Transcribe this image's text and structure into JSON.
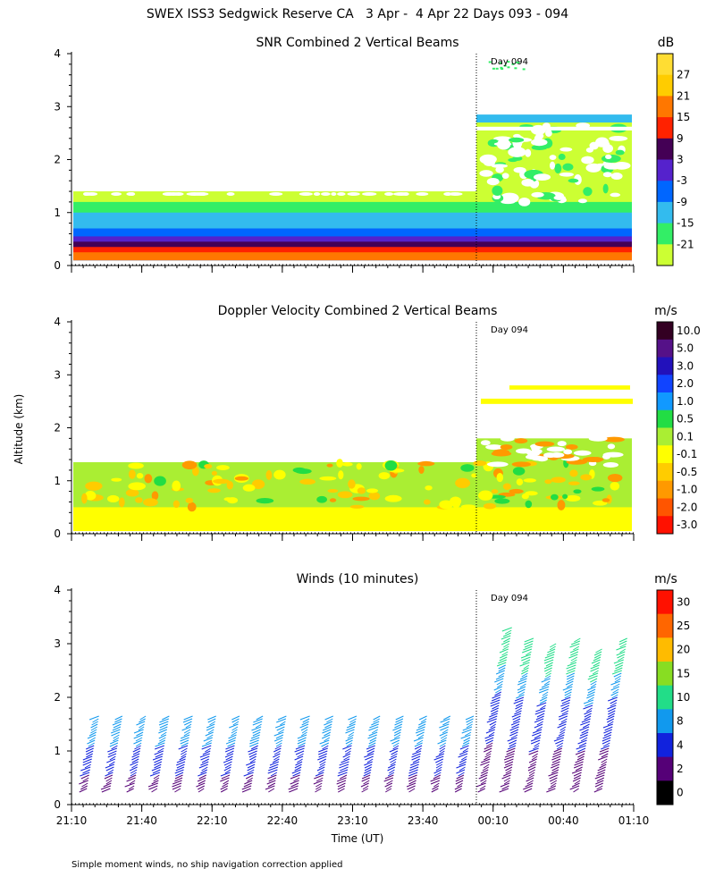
{
  "title": "SWEX ISS3 Sedgwick Reserve CA   3 Apr -  4 Apr 22 Days 093 - 094",
  "ylabel": "Altitude (km)",
  "xlabel": "Time (UT)",
  "footnote": "Simple moment winds, no ship navigation correction applied",
  "day_marker": "Day 094",
  "chart_data": [
    {
      "type": "heatmap",
      "title": "SNR Combined 2 Vertical Beams",
      "ylabel": "Altitude (km)",
      "ylim": [
        0,
        4
      ],
      "yticks": [
        "0",
        "1",
        "2",
        "3",
        "4"
      ],
      "x_range": [
        "21:10",
        "01:10"
      ],
      "colorbar": {
        "unit": "dB",
        "labels": [
          "-21",
          "-15",
          "-9",
          "-3",
          "3",
          "9",
          "15",
          "21",
          "27"
        ],
        "colors": [
          "#ccff33",
          "#33ee66",
          "#33bbee",
          "#0066ff",
          "#5522cc",
          "#440055",
          "#ff2200",
          "#ff7700",
          "#ffcc00",
          "#ffdd33"
        ]
      },
      "annotation": "Day 094",
      "layers": [
        {
          "alt_top_km": 1.4,
          "alt_top_after_day094_km": 2.8,
          "value_db": -21
        },
        {
          "alt_top_km": 1.2,
          "value_db": -15
        },
        {
          "alt_top_km": 1.0,
          "value_db": -9
        },
        {
          "alt_top_km": 0.7,
          "value_db": -3
        },
        {
          "alt_top_km": 0.55,
          "value_db": 3
        },
        {
          "alt_top_km": 0.45,
          "value_db": 9
        },
        {
          "alt_top_km": 0.35,
          "value_db": 15
        },
        {
          "alt_top_km": 0.25,
          "value_db": 21
        }
      ]
    },
    {
      "type": "heatmap",
      "title": "Doppler Velocity Combined 2 Vertical Beams",
      "ylabel": "Altitude (km)",
      "ylim": [
        0,
        4
      ],
      "yticks": [
        "0",
        "1",
        "2",
        "3",
        "4"
      ],
      "x_range": [
        "21:10",
        "01:10"
      ],
      "colorbar": {
        "unit": "m/s",
        "labels": [
          "10.0",
          "5.0",
          "3.0",
          "2.0",
          "1.0",
          "0.5",
          "0.1",
          "-0.1",
          "-0.5",
          "-1.0",
          "-2.0",
          "-3.0"
        ],
        "colors": [
          "#330022",
          "#551188",
          "#2211bb",
          "#1144ff",
          "#1199ff",
          "#22dd44",
          "#aaee33",
          "#ffff00",
          "#ffcc00",
          "#ff9900",
          "#ff5500",
          "#ff1100"
        ]
      },
      "annotation": "Day 094",
      "layers": [
        {
          "alt_top_km": 1.35,
          "alt_top_after_day094_km": 1.8,
          "value_ms": -0.1
        },
        {
          "alt_top_km": 0.5,
          "value_ms": 0.1
        }
      ]
    },
    {
      "type": "scatter",
      "title": "Winds (10 minutes)",
      "ylabel": "Altitude (km)",
      "ylim": [
        0,
        4
      ],
      "yticks": [
        "0",
        "1",
        "2",
        "3",
        "4"
      ],
      "xticks": [
        "21:10",
        "21:40",
        "22:10",
        "22:40",
        "23:10",
        "23:40",
        "00:10",
        "00:40",
        "01:10"
      ],
      "colorbar": {
        "unit": "m/s",
        "labels": [
          "30",
          "25",
          "20",
          "15",
          "10",
          "8",
          "4",
          "2",
          "0"
        ],
        "colors": [
          "#ff1100",
          "#ff6600",
          "#ffbb00",
          "#88dd22",
          "#22dd88",
          "#1199ee",
          "#1122dd",
          "#550077",
          "#000000"
        ]
      },
      "annotation": "Day 094",
      "profile_times": [
        "21:20",
        "21:30",
        "21:40",
        "21:50",
        "22:00",
        "22:10",
        "22:20",
        "22:30",
        "22:40",
        "22:50",
        "23:00",
        "23:10",
        "23:20",
        "23:30",
        "23:40",
        "23:50",
        "00:00",
        "00:10",
        "00:20",
        "00:30",
        "00:40",
        "00:50",
        "01:00"
      ],
      "profile_top_km": [
        1.7,
        1.7,
        1.7,
        1.7,
        1.7,
        1.7,
        1.7,
        1.7,
        1.7,
        1.7,
        1.7,
        1.7,
        1.7,
        1.7,
        1.7,
        1.7,
        1.7,
        3.3,
        3.1,
        3.0,
        3.1,
        2.9,
        3.1
      ]
    }
  ]
}
